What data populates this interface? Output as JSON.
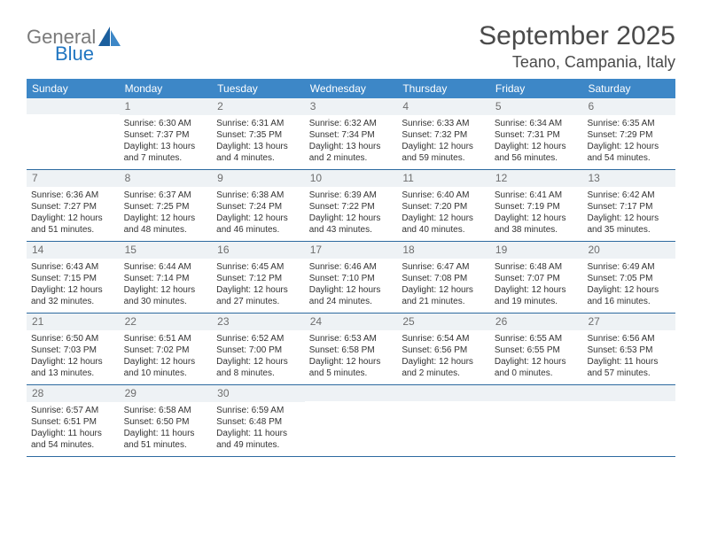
{
  "logo": {
    "word1": "General",
    "word2": "Blue"
  },
  "title": "September 2025",
  "subtitle": "Teano, Campania, Italy",
  "colors": {
    "header_bg": "#3d87c7",
    "header_text": "#ffffff",
    "daynum_bg": "#eef2f5",
    "daynum_text": "#6e6e6e",
    "divider": "#2d6aa0",
    "logo_gray": "#7a7a7a",
    "logo_blue": "#2176c1"
  },
  "weekdays": [
    "Sunday",
    "Monday",
    "Tuesday",
    "Wednesday",
    "Thursday",
    "Friday",
    "Saturday"
  ],
  "weeks": [
    [
      {
        "n": "",
        "sr": "",
        "ss": "",
        "dl": ""
      },
      {
        "n": "1",
        "sr": "Sunrise: 6:30 AM",
        "ss": "Sunset: 7:37 PM",
        "dl": "Daylight: 13 hours and 7 minutes."
      },
      {
        "n": "2",
        "sr": "Sunrise: 6:31 AM",
        "ss": "Sunset: 7:35 PM",
        "dl": "Daylight: 13 hours and 4 minutes."
      },
      {
        "n": "3",
        "sr": "Sunrise: 6:32 AM",
        "ss": "Sunset: 7:34 PM",
        "dl": "Daylight: 13 hours and 2 minutes."
      },
      {
        "n": "4",
        "sr": "Sunrise: 6:33 AM",
        "ss": "Sunset: 7:32 PM",
        "dl": "Daylight: 12 hours and 59 minutes."
      },
      {
        "n": "5",
        "sr": "Sunrise: 6:34 AM",
        "ss": "Sunset: 7:31 PM",
        "dl": "Daylight: 12 hours and 56 minutes."
      },
      {
        "n": "6",
        "sr": "Sunrise: 6:35 AM",
        "ss": "Sunset: 7:29 PM",
        "dl": "Daylight: 12 hours and 54 minutes."
      }
    ],
    [
      {
        "n": "7",
        "sr": "Sunrise: 6:36 AM",
        "ss": "Sunset: 7:27 PM",
        "dl": "Daylight: 12 hours and 51 minutes."
      },
      {
        "n": "8",
        "sr": "Sunrise: 6:37 AM",
        "ss": "Sunset: 7:25 PM",
        "dl": "Daylight: 12 hours and 48 minutes."
      },
      {
        "n": "9",
        "sr": "Sunrise: 6:38 AM",
        "ss": "Sunset: 7:24 PM",
        "dl": "Daylight: 12 hours and 46 minutes."
      },
      {
        "n": "10",
        "sr": "Sunrise: 6:39 AM",
        "ss": "Sunset: 7:22 PM",
        "dl": "Daylight: 12 hours and 43 minutes."
      },
      {
        "n": "11",
        "sr": "Sunrise: 6:40 AM",
        "ss": "Sunset: 7:20 PM",
        "dl": "Daylight: 12 hours and 40 minutes."
      },
      {
        "n": "12",
        "sr": "Sunrise: 6:41 AM",
        "ss": "Sunset: 7:19 PM",
        "dl": "Daylight: 12 hours and 38 minutes."
      },
      {
        "n": "13",
        "sr": "Sunrise: 6:42 AM",
        "ss": "Sunset: 7:17 PM",
        "dl": "Daylight: 12 hours and 35 minutes."
      }
    ],
    [
      {
        "n": "14",
        "sr": "Sunrise: 6:43 AM",
        "ss": "Sunset: 7:15 PM",
        "dl": "Daylight: 12 hours and 32 minutes."
      },
      {
        "n": "15",
        "sr": "Sunrise: 6:44 AM",
        "ss": "Sunset: 7:14 PM",
        "dl": "Daylight: 12 hours and 30 minutes."
      },
      {
        "n": "16",
        "sr": "Sunrise: 6:45 AM",
        "ss": "Sunset: 7:12 PM",
        "dl": "Daylight: 12 hours and 27 minutes."
      },
      {
        "n": "17",
        "sr": "Sunrise: 6:46 AM",
        "ss": "Sunset: 7:10 PM",
        "dl": "Daylight: 12 hours and 24 minutes."
      },
      {
        "n": "18",
        "sr": "Sunrise: 6:47 AM",
        "ss": "Sunset: 7:08 PM",
        "dl": "Daylight: 12 hours and 21 minutes."
      },
      {
        "n": "19",
        "sr": "Sunrise: 6:48 AM",
        "ss": "Sunset: 7:07 PM",
        "dl": "Daylight: 12 hours and 19 minutes."
      },
      {
        "n": "20",
        "sr": "Sunrise: 6:49 AM",
        "ss": "Sunset: 7:05 PM",
        "dl": "Daylight: 12 hours and 16 minutes."
      }
    ],
    [
      {
        "n": "21",
        "sr": "Sunrise: 6:50 AM",
        "ss": "Sunset: 7:03 PM",
        "dl": "Daylight: 12 hours and 13 minutes."
      },
      {
        "n": "22",
        "sr": "Sunrise: 6:51 AM",
        "ss": "Sunset: 7:02 PM",
        "dl": "Daylight: 12 hours and 10 minutes."
      },
      {
        "n": "23",
        "sr": "Sunrise: 6:52 AM",
        "ss": "Sunset: 7:00 PM",
        "dl": "Daylight: 12 hours and 8 minutes."
      },
      {
        "n": "24",
        "sr": "Sunrise: 6:53 AM",
        "ss": "Sunset: 6:58 PM",
        "dl": "Daylight: 12 hours and 5 minutes."
      },
      {
        "n": "25",
        "sr": "Sunrise: 6:54 AM",
        "ss": "Sunset: 6:56 PM",
        "dl": "Daylight: 12 hours and 2 minutes."
      },
      {
        "n": "26",
        "sr": "Sunrise: 6:55 AM",
        "ss": "Sunset: 6:55 PM",
        "dl": "Daylight: 12 hours and 0 minutes."
      },
      {
        "n": "27",
        "sr": "Sunrise: 6:56 AM",
        "ss": "Sunset: 6:53 PM",
        "dl": "Daylight: 11 hours and 57 minutes."
      }
    ],
    [
      {
        "n": "28",
        "sr": "Sunrise: 6:57 AM",
        "ss": "Sunset: 6:51 PM",
        "dl": "Daylight: 11 hours and 54 minutes."
      },
      {
        "n": "29",
        "sr": "Sunrise: 6:58 AM",
        "ss": "Sunset: 6:50 PM",
        "dl": "Daylight: 11 hours and 51 minutes."
      },
      {
        "n": "30",
        "sr": "Sunrise: 6:59 AM",
        "ss": "Sunset: 6:48 PM",
        "dl": "Daylight: 11 hours and 49 minutes."
      },
      {
        "n": "",
        "sr": "",
        "ss": "",
        "dl": ""
      },
      {
        "n": "",
        "sr": "",
        "ss": "",
        "dl": ""
      },
      {
        "n": "",
        "sr": "",
        "ss": "",
        "dl": ""
      },
      {
        "n": "",
        "sr": "",
        "ss": "",
        "dl": ""
      }
    ]
  ]
}
